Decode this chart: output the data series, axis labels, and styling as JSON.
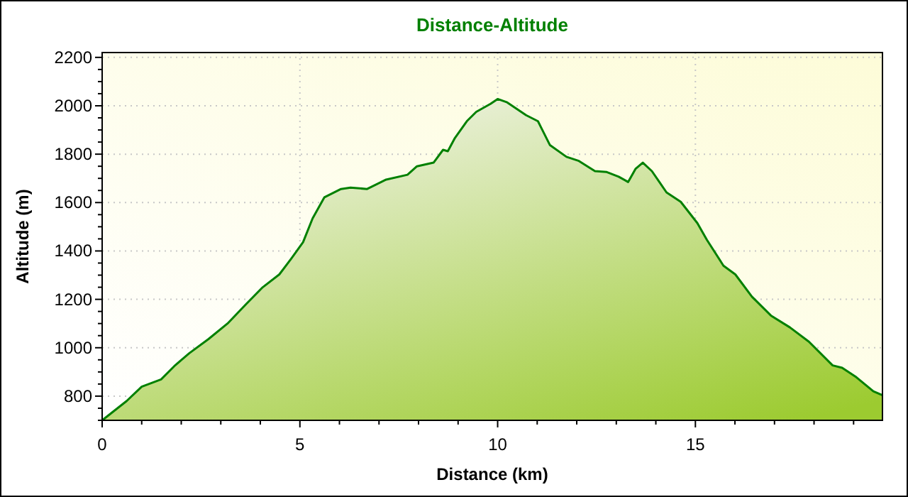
{
  "chart_data": {
    "type": "area",
    "title": "Distance-Altitude",
    "xlabel": "Distance (km)",
    "ylabel": "Altitude (m)",
    "xlim": [
      0,
      19.73
    ],
    "ylim": [
      700,
      2220
    ],
    "xticks": [
      0,
      {
        "value": 1,
        "label": null
      },
      {
        "value": 2,
        "label": null
      },
      {
        "value": 3,
        "label": null
      },
      {
        "value": 4,
        "label": null
      },
      5,
      {
        "value": 6,
        "label": null
      },
      {
        "value": 7,
        "label": null
      },
      {
        "value": 8,
        "label": null
      },
      {
        "value": 9,
        "label": null
      },
      10,
      {
        "value": 11,
        "label": null
      },
      {
        "value": 12,
        "label": null
      },
      {
        "value": 13,
        "label": null
      },
      {
        "value": 14,
        "label": null
      },
      15,
      {
        "value": 16,
        "label": null
      },
      {
        "value": 17,
        "label": null
      },
      {
        "value": 18,
        "label": null
      },
      {
        "value": 19,
        "label": null
      }
    ],
    "yticks": [
      {
        "value": 700,
        "label": null
      },
      {
        "value": 750,
        "label": null
      },
      800,
      {
        "value": 850,
        "label": null
      },
      {
        "value": 900,
        "label": null
      },
      {
        "value": 950,
        "label": null
      },
      1000,
      {
        "value": 1050,
        "label": null
      },
      {
        "value": 1100,
        "label": null
      },
      {
        "value": 1150,
        "label": null
      },
      1200,
      {
        "value": 1250,
        "label": null
      },
      {
        "value": 1300,
        "label": null
      },
      {
        "value": 1350,
        "label": null
      },
      1400,
      {
        "value": 1450,
        "label": null
      },
      {
        "value": 1500,
        "label": null
      },
      {
        "value": 1550,
        "label": null
      },
      1600,
      {
        "value": 1650,
        "label": null
      },
      {
        "value": 1700,
        "label": null
      },
      {
        "value": 1750,
        "label": null
      },
      1800,
      {
        "value": 1850,
        "label": null
      },
      {
        "value": 1900,
        "label": null
      },
      {
        "value": 1950,
        "label": null
      },
      2000,
      {
        "value": 2050,
        "label": null
      },
      {
        "value": 2100,
        "label": null
      },
      {
        "value": 2150,
        "label": null
      },
      2200
    ],
    "grid": true,
    "x": [
      0,
      0.62,
      1.0,
      1.49,
      1.85,
      2.2,
      2.69,
      3.17,
      3.65,
      4.06,
      4.48,
      4.78,
      5.08,
      5.32,
      5.62,
      6.04,
      6.28,
      6.7,
      7.18,
      7.72,
      7.96,
      8.38,
      8.62,
      8.74,
      8.92,
      9.22,
      9.46,
      9.82,
      10,
      10.24,
      10.72,
      11.02,
      11.32,
      11.74,
      12.04,
      12.46,
      12.76,
      13.06,
      13.3,
      13.49,
      13.67,
      13.9,
      14.27,
      14.63,
      15.05,
      15.29,
      15.71,
      16.01,
      16.43,
      16.91,
      17.39,
      17.87,
      18.47,
      18.71,
      19.07,
      19.5,
      19.73
    ],
    "series": [
      {
        "color": "#008000",
        "values": [
          700,
          780,
          839,
          869,
          928,
          977,
          1036,
          1100,
          1182,
          1250,
          1303,
          1368,
          1436,
          1534,
          1622,
          1656,
          1662,
          1656,
          1695,
          1715,
          1750,
          1765,
          1818,
          1812,
          1867,
          1936,
          1975,
          2008,
          2028,
          2014,
          1961,
          1936,
          1838,
          1789,
          1773,
          1730,
          1726,
          1707,
          1685,
          1740,
          1765,
          1730,
          1642,
          1603,
          1515,
          1446,
          1339,
          1303,
          1211,
          1133,
          1084,
          1025,
          927,
          917,
          878,
          820,
          804
        ]
      }
    ]
  }
}
